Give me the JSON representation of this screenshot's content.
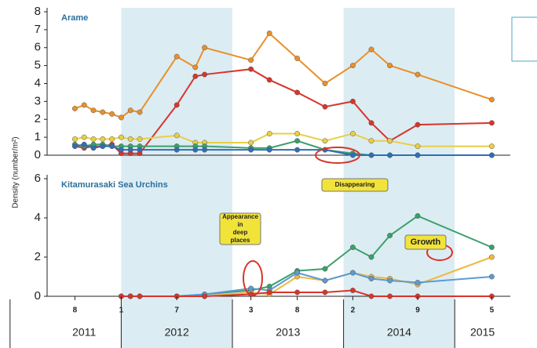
{
  "chart_data": [
    {
      "type": "line",
      "title": "Arame",
      "ylabel": "Density (number/m²)",
      "x": [
        "2011-08",
        "2011-09",
        "2011-10",
        "2011-11",
        "2011-12",
        "2012-01",
        "2012-02",
        "2012-03",
        "2012-07",
        "2012-09",
        "2012-10",
        "2013-03",
        "2013-05",
        "2013-08",
        "2013-11",
        "2014-02",
        "2014-04",
        "2014-06",
        "2014-09",
        "2015-05"
      ],
      "series": [
        {
          "color": "#e8902a",
          "values": [
            2.6,
            2.8,
            2.5,
            2.4,
            2.3,
            2.1,
            2.5,
            2.4,
            5.5,
            4.9,
            6.0,
            5.3,
            6.8,
            5.4,
            4.0,
            5.0,
            5.9,
            5.0,
            4.5,
            3.1
          ]
        },
        {
          "color": "#d9342b",
          "values": [
            0.5,
            0.4,
            0.5,
            0.5,
            0.6,
            0.1,
            0.1,
            0.1,
            2.8,
            4.4,
            4.5,
            4.8,
            4.2,
            3.5,
            2.7,
            3.0,
            1.8,
            0.8,
            1.7,
            1.8
          ]
        },
        {
          "color": "#e8cf45",
          "values": [
            0.9,
            1.0,
            0.9,
            0.9,
            0.9,
            1.0,
            0.9,
            0.9,
            1.1,
            0.7,
            0.7,
            0.7,
            1.2,
            1.2,
            0.8,
            1.2,
            0.8,
            0.8,
            0.5,
            0.5
          ]
        },
        {
          "color": "#3aa06a",
          "values": [
            0.6,
            0.5,
            0.6,
            0.6,
            0.5,
            0.5,
            0.5,
            0.5,
            0.5,
            0.5,
            0.5,
            0.4,
            0.4,
            0.8,
            0.3,
            0.1,
            0,
            0,
            0,
            0
          ]
        },
        {
          "color": "#2e6fb5",
          "values": [
            0.5,
            0.6,
            0.4,
            0.5,
            0.5,
            0.3,
            0.3,
            0.3,
            0.3,
            0.3,
            0.3,
            0.3,
            0.3,
            0.3,
            0.3,
            0,
            0,
            0,
            0,
            0
          ]
        }
      ],
      "xlim": [
        "2011-05",
        "2015-07"
      ],
      "ylim": [
        0,
        8
      ],
      "yticks": [
        0,
        1,
        2,
        3,
        4,
        5,
        6,
        7,
        8
      ],
      "annotations": [
        "Disappearing"
      ]
    },
    {
      "type": "line",
      "title": "Kitamurasaki Sea Urchins",
      "x": [
        "2012-01",
        "2012-02",
        "2012-03",
        "2012-07",
        "2012-10",
        "2013-03",
        "2013-05",
        "2013-08",
        "2013-11",
        "2014-02",
        "2014-04",
        "2014-06",
        "2014-09",
        "2015-05"
      ],
      "series": [
        {
          "color": "#3aa06a",
          "values": [
            0,
            0,
            0,
            0,
            0.1,
            0.3,
            0.5,
            1.3,
            1.4,
            2.5,
            2.0,
            3.1,
            4.1,
            2.5
          ]
        },
        {
          "color": "#f0b840",
          "values": [
            0,
            0,
            0,
            0,
            0,
            0.2,
            0.1,
            1.0,
            0.8,
            1.2,
            1.0,
            0.9,
            0.6,
            2.0
          ]
        },
        {
          "color": "#5b9bd5",
          "values": [
            0,
            0,
            0,
            0,
            0.1,
            0.4,
            0.3,
            1.2,
            0.8,
            1.2,
            0.9,
            0.8,
            0.7,
            1.0
          ]
        },
        {
          "color": "#d9342b",
          "values": [
            0,
            0,
            0,
            0,
            0,
            0.1,
            0.2,
            0.2,
            0.2,
            0.3,
            0,
            0,
            0,
            0
          ]
        }
      ],
      "xlim": [
        "2011-05",
        "2015-07"
      ],
      "ylim": [
        0,
        6
      ],
      "yticks": [
        0,
        2,
        4,
        6
      ],
      "xticks": [
        {
          "value": "2011-08",
          "label": "8"
        },
        {
          "value": "2012-01",
          "label": "1"
        },
        {
          "value": "2012-07",
          "label": "7"
        },
        {
          "value": "2013-03",
          "label": "3"
        },
        {
          "value": "2013-08",
          "label": "8"
        },
        {
          "value": "2014-02",
          "label": "2"
        },
        {
          "value": "2014-09",
          "label": "9"
        },
        {
          "value": "2015-05",
          "label": "5"
        }
      ],
      "years": [
        "2011",
        "2012",
        "2013",
        "2014",
        "2015"
      ],
      "shaded_years": [
        "2012",
        "2014"
      ],
      "annotations": [
        "Appearance in deep places",
        "Growth"
      ]
    }
  ]
}
